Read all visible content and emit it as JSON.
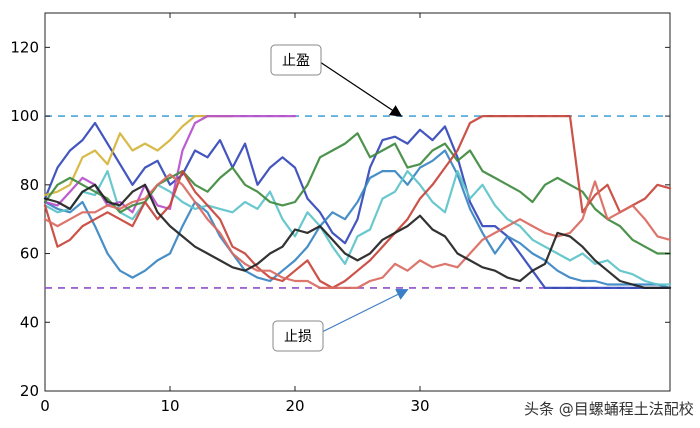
{
  "chart_data": {
    "type": "line",
    "title": "",
    "xlabel": "",
    "ylabel": "",
    "xlim": [
      0,
      50
    ],
    "ylim": [
      20,
      130
    ],
    "xticks": [
      0,
      10,
      20,
      30
    ],
    "yticks": [
      20,
      40,
      60,
      80,
      100,
      120
    ],
    "grid": false,
    "legend": "none",
    "thresholds": [
      {
        "label": "止盈",
        "value": 100,
        "color": "#4aa8d8"
      },
      {
        "label": "止损",
        "value": 50,
        "color": "#8f4fc9"
      }
    ],
    "annotations": [
      {
        "text": "止盈",
        "target_x": 28.5,
        "target_y": 100,
        "arrow_color": "#000000"
      },
      {
        "text": "止损",
        "target_x": 29,
        "target_y": 49.5,
        "arrow_color": "#3a7ec8"
      }
    ],
    "series": [
      {
        "color": "#3347b8",
        "x": [
          0,
          1,
          2,
          3,
          4,
          5,
          6,
          7,
          8,
          9,
          10,
          11,
          12,
          13,
          14,
          15,
          16,
          17,
          18,
          19,
          20,
          21,
          22,
          23,
          24,
          25,
          26,
          27,
          28,
          29,
          30,
          31,
          32,
          33,
          34,
          35,
          36,
          37,
          38,
          39,
          40,
          41,
          42,
          43,
          44,
          45,
          46,
          47,
          48,
          49,
          50
        ],
        "y": [
          76,
          85,
          90,
          93,
          98,
          92,
          86,
          80,
          85,
          87,
          80,
          83,
          90,
          88,
          93,
          85,
          92,
          80,
          85,
          88,
          85,
          76,
          72,
          66,
          63,
          70,
          85,
          93,
          94,
          92,
          96,
          93,
          97,
          88,
          75,
          68,
          68,
          65,
          60,
          55,
          50,
          50,
          50,
          50,
          50,
          50,
          50,
          50,
          50,
          50,
          50
        ]
      },
      {
        "color": "#3a86c2",
        "x": [
          0,
          1,
          2,
          3,
          4,
          5,
          6,
          7,
          8,
          9,
          10,
          11,
          12,
          13,
          14,
          15,
          16,
          17,
          18,
          19,
          20,
          21,
          22,
          23,
          24,
          25,
          26,
          27,
          28,
          29,
          30,
          31,
          32,
          33,
          34,
          35,
          36,
          37,
          38,
          39,
          40,
          41,
          42,
          43,
          44,
          45,
          46,
          47,
          48,
          49,
          50
        ],
        "y": [
          75,
          73,
          72,
          75,
          68,
          60,
          55,
          53,
          55,
          58,
          60,
          68,
          75,
          72,
          65,
          60,
          55,
          53,
          52,
          55,
          58,
          62,
          68,
          72,
          70,
          75,
          82,
          84,
          84,
          80,
          85,
          87,
          90,
          83,
          73,
          66,
          60,
          65,
          63,
          60,
          58,
          55,
          53,
          52,
          52,
          51,
          51,
          51,
          51,
          51,
          50
        ]
      },
      {
        "color": "#5cc3c9",
        "x": [
          0,
          1,
          2,
          3,
          4,
          5,
          6,
          7,
          8,
          9,
          10,
          11,
          12,
          13,
          14,
          15,
          16,
          17,
          18,
          19,
          20,
          21,
          22,
          23,
          24,
          25,
          26,
          27,
          28,
          29,
          30,
          31,
          32,
          33,
          34,
          35,
          36,
          37,
          38,
          39,
          40,
          41,
          42,
          43,
          44,
          45,
          46,
          47,
          48,
          49,
          50
        ],
        "y": [
          74,
          72,
          73,
          78,
          77,
          84,
          72,
          70,
          75,
          80,
          78,
          75,
          73,
          74,
          73,
          72,
          75,
          73,
          78,
          70,
          65,
          72,
          68,
          62,
          57,
          65,
          67,
          76,
          78,
          84,
          80,
          75,
          72,
          84,
          76,
          80,
          74,
          70,
          68,
          64,
          62,
          60,
          58,
          60,
          57,
          58,
          55,
          54,
          52,
          51,
          51
        ]
      },
      {
        "color": "#d4b43a",
        "x": [
          0,
          1,
          2,
          3,
          4,
          5,
          6,
          7,
          8,
          9,
          10,
          11,
          12,
          13,
          14,
          15
        ],
        "y": [
          77,
          78,
          80,
          88,
          90,
          86,
          95,
          90,
          92,
          90,
          93,
          97,
          100,
          100,
          100,
          100
        ]
      },
      {
        "color": "#b64fcc",
        "x": [
          0,
          1,
          2,
          3,
          4,
          5,
          6,
          7,
          8,
          9,
          10,
          11,
          12,
          13,
          14,
          15,
          16,
          17,
          18,
          19,
          20
        ],
        "y": [
          75,
          74,
          78,
          82,
          80,
          74,
          75,
          72,
          80,
          74,
          73,
          90,
          98,
          100,
          100,
          100,
          100,
          100,
          100,
          100,
          100
        ]
      },
      {
        "color": "#3e8a3e",
        "x": [
          0,
          1,
          2,
          3,
          4,
          5,
          6,
          7,
          8,
          9,
          10,
          11,
          12,
          13,
          14,
          15,
          16,
          17,
          18,
          19,
          20,
          21,
          22,
          23,
          24,
          25,
          26,
          27,
          28,
          29,
          30,
          31,
          32,
          33,
          34,
          35,
          36,
          37,
          38,
          39,
          40,
          41,
          42,
          43,
          44,
          45,
          46,
          47,
          48,
          49,
          50
        ],
        "y": [
          75,
          80,
          82,
          80,
          78,
          76,
          72,
          74,
          75,
          80,
          82,
          84,
          80,
          78,
          82,
          85,
          80,
          78,
          75,
          74,
          75,
          80,
          88,
          90,
          92,
          95,
          88,
          90,
          92,
          85,
          86,
          90,
          92,
          87,
          90,
          84,
          82,
          80,
          78,
          75,
          80,
          82,
          80,
          78,
          73,
          70,
          68,
          64,
          62,
          60,
          60
        ]
      },
      {
        "color": "#c7443a",
        "x": [
          0,
          1,
          2,
          3,
          4,
          5,
          6,
          7,
          8,
          9,
          10,
          11,
          12,
          13,
          14,
          15,
          16,
          17,
          18,
          19,
          20,
          21,
          22,
          23,
          24,
          25,
          26,
          27,
          28,
          29,
          30,
          31,
          32,
          33,
          34,
          35,
          36,
          37,
          38,
          39,
          40,
          41,
          42,
          43,
          44,
          45,
          46,
          47,
          48,
          49,
          50
        ],
        "y": [
          74,
          62,
          64,
          68,
          70,
          72,
          70,
          68,
          75,
          70,
          74,
          84,
          78,
          74,
          70,
          62,
          60,
          56,
          53,
          52,
          55,
          58,
          52,
          50,
          52,
          55,
          58,
          62,
          66,
          70,
          76,
          80,
          85,
          90,
          98,
          100,
          100,
          100,
          100,
          100,
          100,
          100,
          100,
          72,
          77,
          80,
          72,
          74,
          76,
          80,
          79
        ]
      },
      {
        "color": "#d9695f",
        "x": [
          0,
          1,
          2,
          3,
          4,
          5,
          6,
          7,
          8,
          9,
          10,
          11,
          12,
          13,
          14,
          15,
          16,
          17,
          18,
          19,
          20,
          21,
          22,
          23,
          24,
          25,
          26,
          27,
          28,
          29,
          30,
          31,
          32,
          33,
          34,
          35,
          36,
          37,
          38,
          39,
          40,
          41,
          42,
          43,
          44,
          45,
          46,
          47,
          48,
          49,
          50
        ],
        "y": [
          70,
          68,
          70,
          72,
          72,
          74,
          73,
          75,
          76,
          80,
          83,
          80,
          75,
          70,
          66,
          60,
          57,
          55,
          55,
          53,
          52,
          52,
          50,
          50,
          50,
          50,
          52,
          53,
          57,
          55,
          58,
          56,
          57,
          56,
          60,
          64,
          66,
          68,
          70,
          68,
          66,
          65,
          66,
          70,
          81,
          70,
          72,
          74,
          70,
          65,
          64
        ]
      },
      {
        "color": "#222222",
        "x": [
          0,
          1,
          2,
          3,
          4,
          5,
          6,
          7,
          8,
          9,
          10,
          11,
          12,
          13,
          14,
          15,
          16,
          17,
          18,
          19,
          20,
          21,
          22,
          23,
          24,
          25,
          26,
          27,
          28,
          29,
          30,
          31,
          32,
          33,
          34,
          35,
          36,
          37,
          38,
          39,
          40,
          41,
          42,
          43,
          44,
          45,
          46,
          47,
          48,
          49,
          50
        ],
        "y": [
          76,
          75,
          73,
          78,
          80,
          75,
          74,
          78,
          80,
          72,
          68,
          65,
          62,
          60,
          58,
          56,
          55,
          57,
          60,
          62,
          67,
          66,
          68,
          64,
          60,
          58,
          60,
          64,
          66,
          68,
          71,
          67,
          65,
          60,
          58,
          56,
          55,
          53,
          52,
          55,
          57,
          66,
          65,
          62,
          58,
          55,
          52,
          51,
          50,
          50,
          50
        ]
      }
    ]
  },
  "watermark": {
    "text": "头条 @目螺蛹程土法配校"
  }
}
